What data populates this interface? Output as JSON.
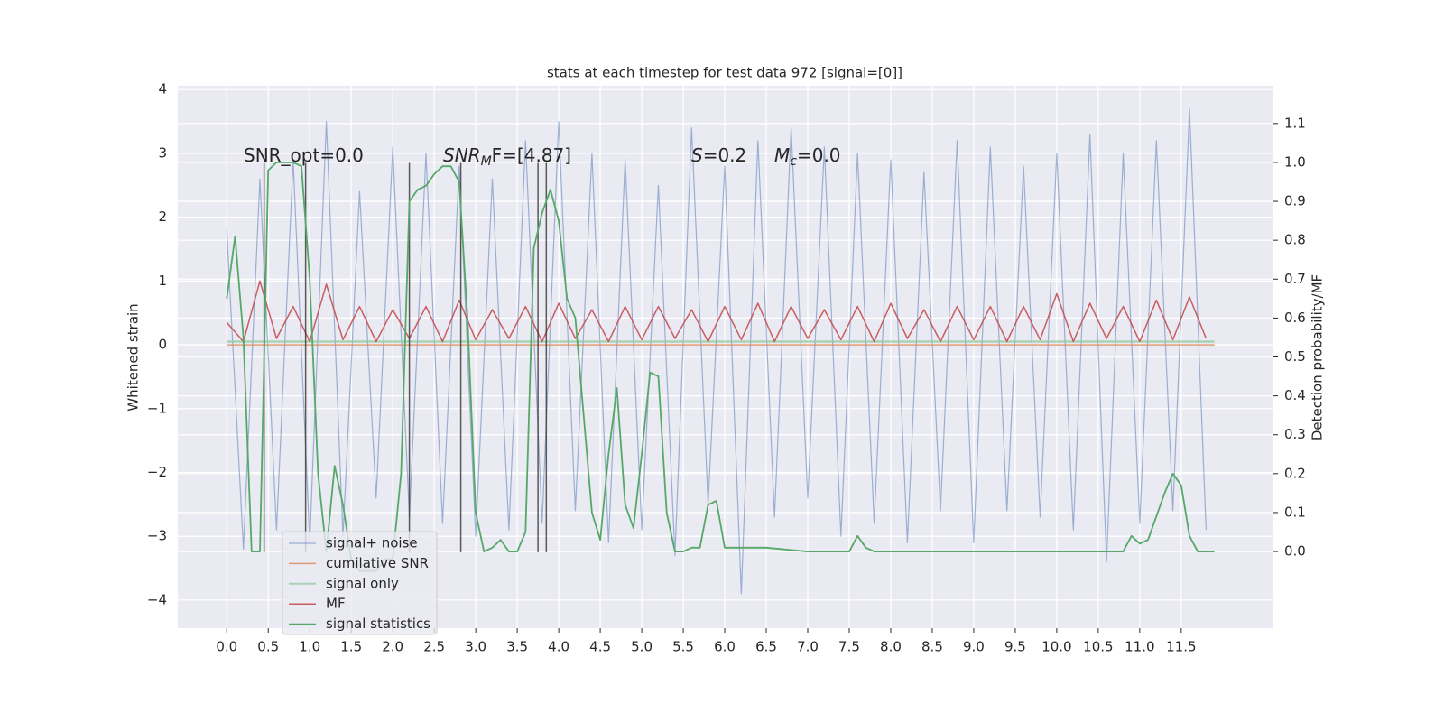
{
  "chart_data": {
    "type": "line",
    "title": "stats at each timestep for test data 972 [signal=[0]]",
    "ylabel": "Whitened strain",
    "y2label": "Detection probability/MF",
    "x": [
      0,
      0.2,
      0.4,
      0.6,
      0.8,
      1,
      1.2,
      1.4,
      1.6,
      1.8,
      2,
      2.2,
      2.4,
      2.6,
      2.8,
      3,
      3.2,
      3.4,
      3.6,
      3.8,
      4,
      4.2,
      4.4,
      4.6,
      4.8,
      5,
      5.2,
      5.4,
      5.6,
      5.8,
      6,
      6.2,
      6.4,
      6.6,
      6.8,
      7,
      7.2,
      7.4,
      7.6,
      7.8,
      8,
      8.2,
      8.4,
      8.6,
      8.8,
      9,
      9.2,
      9.4,
      9.6,
      9.8,
      10,
      10.2,
      10.4,
      10.6,
      10.8,
      11,
      11.2,
      11.4,
      11.6,
      11.8
    ],
    "xlim": [
      -0.59,
      12.6
    ],
    "xticks": [
      {
        "value": 0,
        "label": "0.0"
      },
      0.5,
      {
        "value": 1,
        "label": "1.0"
      },
      1.5,
      {
        "value": 2,
        "label": "2.0"
      },
      2.5,
      {
        "value": 3,
        "label": "3.0"
      },
      3.5,
      {
        "value": 4,
        "label": "4.0"
      },
      4.5,
      {
        "value": 5,
        "label": "5.0"
      },
      5.5,
      {
        "value": 6,
        "label": "6.0"
      },
      6.5,
      {
        "value": 7,
        "label": "7.0"
      },
      7.5,
      {
        "value": 8,
        "label": "8.0"
      },
      8.5,
      {
        "value": 9,
        "label": "9.0"
      },
      9.5,
      {
        "value": 10,
        "label": "10.0"
      },
      10.5,
      {
        "value": 11,
        "label": "11.0"
      },
      11.5
    ],
    "ylim": [
      -4.44,
      4.06
    ],
    "yticks": [
      {
        "value": -4,
        "label": "−4"
      },
      {
        "value": -3,
        "label": "−3"
      },
      {
        "value": -2,
        "label": "−2"
      },
      {
        "value": -1,
        "label": "−1"
      },
      0,
      1,
      2,
      3,
      4
    ],
    "y2lim": [
      -0.197,
      1.197
    ],
    "y2ticks": [
      {
        "value": 0,
        "label": "0.0"
      },
      0.1,
      0.2,
      0.3,
      0.4,
      0.5,
      0.6,
      0.7,
      0.8,
      0.9,
      {
        "value": 1,
        "label": "1.0"
      },
      1.1
    ],
    "grid": true,
    "legend": "lower left",
    "series": [
      {
        "name": "signal+ noise",
        "color": "#4c72b0",
        "values": [
          1.8,
          -3.2,
          2.6,
          -2.9,
          2.9,
          -3.1,
          3.5,
          -3.0,
          2.4,
          -2.4,
          3.1,
          -2.7,
          3.0,
          -2.8,
          2.8,
          -3.0,
          2.6,
          -2.9,
          3.2,
          -2.8,
          3.5,
          -2.6,
          3.0,
          -3.1,
          2.9,
          -2.9,
          2.5,
          -3.3,
          3.4,
          -2.5,
          2.8,
          -3.9,
          3.2,
          -2.7,
          3.4,
          -2.4,
          3.1,
          -3.0,
          3.0,
          -2.8,
          2.9,
          -3.1,
          2.7,
          -2.6,
          3.2,
          -3.1,
          3.1,
          -2.6,
          2.8,
          -2.7,
          3.0,
          -2.9,
          3.3,
          -3.4,
          3.0,
          -2.8,
          3.2,
          -2.6,
          3.7,
          -2.9
        ]
      },
      {
        "name": "cumilative SNR",
        "color": "#dd8452",
        "x": [
          0,
          11.9
        ],
        "values": [
          0,
          0
        ]
      },
      {
        "name": "signal only",
        "color": "#8fc79c",
        "x": [
          0,
          11.9
        ],
        "values": [
          0.05,
          0.05
        ]
      },
      {
        "name": "MF",
        "color": "#c44e52",
        "values": [
          0.35,
          0.05,
          1.0,
          0.1,
          0.6,
          0.05,
          0.95,
          0.08,
          0.6,
          0.05,
          0.55,
          0.1,
          0.6,
          0.05,
          0.7,
          0.08,
          0.55,
          0.1,
          0.6,
          0.05,
          0.65,
          0.1,
          0.55,
          0.05,
          0.6,
          0.08,
          0.6,
          0.1,
          0.55,
          0.05,
          0.6,
          0.08,
          0.65,
          0.05,
          0.6,
          0.1,
          0.55,
          0.08,
          0.6,
          0.05,
          0.65,
          0.1,
          0.55,
          0.05,
          0.6,
          0.08,
          0.6,
          0.05,
          0.6,
          0.08,
          0.8,
          0.05,
          0.65,
          0.1,
          0.6,
          0.05,
          0.7,
          0.08,
          0.75,
          0.1
        ]
      },
      {
        "name": "signal statistics",
        "color": "#55a868",
        "axis": "y2",
        "x": [
          0,
          0.1,
          0.2,
          0.3,
          0.4,
          0.5,
          0.6,
          0.7,
          0.8,
          0.9,
          1.0,
          1.1,
          1.2,
          1.3,
          1.4,
          1.5,
          1.6,
          1.7,
          1.8,
          1.9,
          2.0,
          2.1,
          2.2,
          2.3,
          2.4,
          2.5,
          2.6,
          2.7,
          2.8,
          2.9,
          3.0,
          3.1,
          3.2,
          3.3,
          3.4,
          3.5,
          3.6,
          3.7,
          3.8,
          3.9,
          4.0,
          4.1,
          4.2,
          4.3,
          4.4,
          4.5,
          4.6,
          4.7,
          4.8,
          4.9,
          5.0,
          5.1,
          5.2,
          5.3,
          5.4,
          5.5,
          5.6,
          5.7,
          5.8,
          5.9,
          6.0,
          6.5,
          7.0,
          7.5,
          7.6,
          7.7,
          7.8,
          8.5,
          9.5,
          10.0,
          10.5,
          10.8,
          10.9,
          11.0,
          11.1,
          11.3,
          11.4,
          11.5,
          11.6,
          11.7,
          11.9
        ],
        "values": [
          0.65,
          0.81,
          0.55,
          0.0,
          0.0,
          0.98,
          1.0,
          1.0,
          1.0,
          0.99,
          0.7,
          0.2,
          0.0,
          0.22,
          0.12,
          -0.02,
          -0.05,
          -0.05,
          -0.05,
          -0.02,
          -0.02,
          0.2,
          0.9,
          0.93,
          0.94,
          0.97,
          0.99,
          0.99,
          0.95,
          0.6,
          0.1,
          0.0,
          0.01,
          0.03,
          0.0,
          0.0,
          0.05,
          0.78,
          0.87,
          0.93,
          0.85,
          0.65,
          0.6,
          0.35,
          0.1,
          0.03,
          0.25,
          0.42,
          0.12,
          0.06,
          0.25,
          0.46,
          0.45,
          0.1,
          0.0,
          0.0,
          0.01,
          0.01,
          0.12,
          0.13,
          0.01,
          0.01,
          0.0,
          0.0,
          0.04,
          0.01,
          0.0,
          0.0,
          0.0,
          0.0,
          0.0,
          0.0,
          0.04,
          0.02,
          0.03,
          0.15,
          0.2,
          0.17,
          0.04,
          0.0,
          0.0
        ]
      }
    ],
    "vlines": [
      0.45,
      0.95,
      2.2,
      2.82,
      3.75,
      3.85
    ],
    "vline_span": [
      -3.25,
      2.85
    ],
    "annotations": [
      {
        "text": "SNR_opt=0.0"
      },
      {
        "text": "SNR",
        "sub": "M",
        "tail": "F=[4.87]"
      },
      {
        "text": "S",
        "tail": "=0.2"
      },
      {
        "text": "M",
        "sub": "c",
        "tail": "=0.0"
      }
    ]
  }
}
